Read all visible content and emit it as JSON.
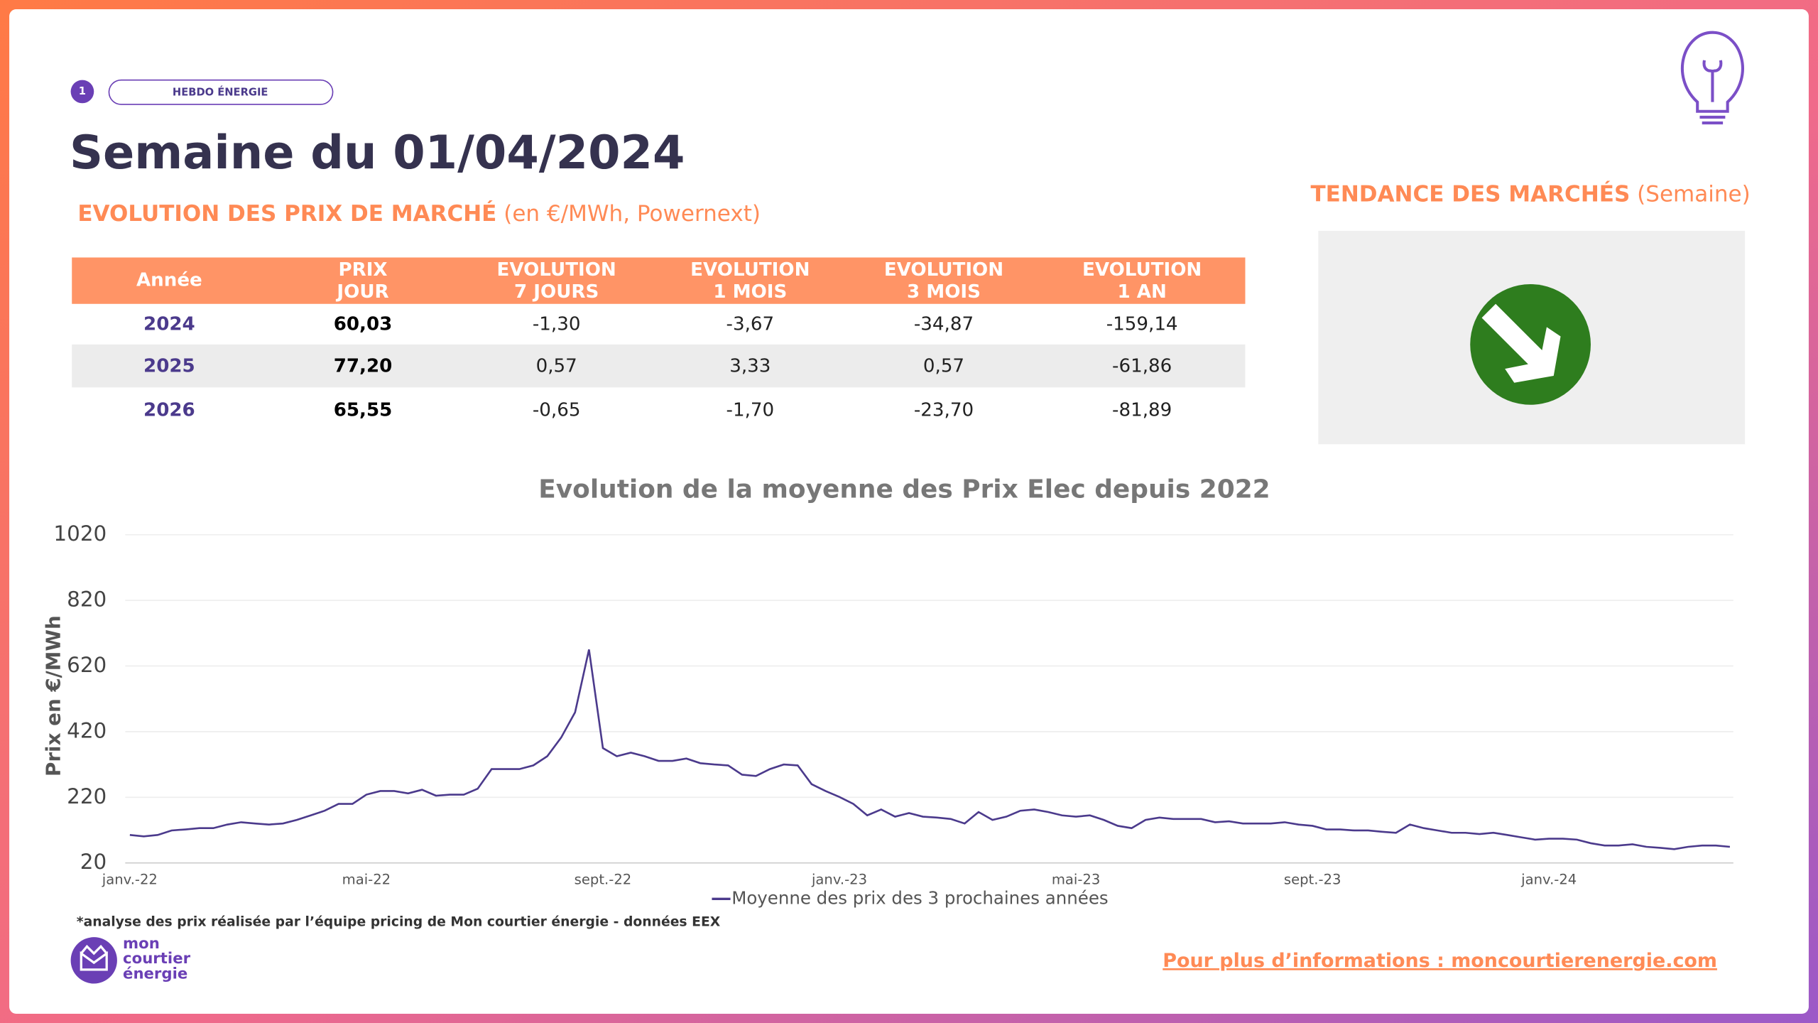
{
  "header": {
    "badge": "1",
    "tag": "HEBDO ÉNERGIE",
    "title": "Semaine du 01/04/2024",
    "subtitle": "EVOLUTION DES PRIX DE MARCHÉ",
    "subtitle_note": "(en €/MWh, Powernext)"
  },
  "trend": {
    "title": "TENDANCE DES MARCHÉS",
    "note": "(Semaine)"
  },
  "table": {
    "header": [
      [
        "Année"
      ],
      [
        "PRIX",
        "JOUR"
      ],
      [
        "EVOLUTION",
        "7 JOURS"
      ],
      [
        "EVOLUTION",
        "1 MOIS"
      ],
      [
        "EVOLUTION",
        "3 MOIS"
      ],
      [
        "EVOLUTION",
        "1 AN"
      ]
    ],
    "rows": [
      [
        "2024",
        "60,03",
        "-1,30",
        "-3,67",
        "-34,87",
        "-159,14"
      ],
      [
        "2025",
        "77,20",
        "0,57",
        "3,33",
        "0,57",
        "-61,86"
      ],
      [
        "2026",
        "65,55",
        "-0,65",
        "-1,70",
        "-23,70",
        "-81,89"
      ]
    ]
  },
  "chart_data": {
    "type": "line",
    "title": "Evolution de la moyenne des Prix Elec depuis 2022",
    "y_label": "Prix en €/MWh",
    "ylim": [
      20,
      1020
    ],
    "yticks": [
      20,
      220,
      420,
      620,
      820,
      1020
    ],
    "grid": true,
    "categories": [
      "janv.-22",
      null,
      null,
      null,
      null,
      null,
      null,
      null,
      null,
      null,
      null,
      null,
      null,
      null,
      null,
      null,
      null,
      "mai-22",
      null,
      null,
      null,
      null,
      null,
      null,
      null,
      null,
      null,
      null,
      null,
      null,
      null,
      null,
      null,
      null,
      "sept.-22",
      null,
      null,
      null,
      null,
      null,
      null,
      null,
      null,
      null,
      null,
      null,
      null,
      null,
      null,
      null,
      null,
      "janv.-23",
      null,
      null,
      null,
      null,
      null,
      null,
      null,
      null,
      null,
      null,
      null,
      null,
      null,
      null,
      null,
      null,
      "mai-23",
      null,
      null,
      null,
      null,
      null,
      null,
      null,
      null,
      null,
      null,
      null,
      null,
      null,
      null,
      null,
      null,
      "sept.-23",
      null,
      null,
      null,
      null,
      null,
      null,
      null,
      null,
      null,
      null,
      null,
      null,
      null,
      null,
      null,
      null,
      "janv.-24",
      null,
      null,
      null,
      null,
      null,
      null,
      null,
      null,
      null,
      null,
      null,
      null,
      null
    ],
    "series": [
      {
        "name": "Moyenne des prix des 3 prochaines années",
        "color": "#4b3a8c",
        "values": [
          105,
          101,
          105,
          119,
          122,
          126,
          126,
          137,
          144,
          140,
          137,
          140,
          151,
          165,
          179,
          200,
          200,
          228,
          239,
          239,
          232,
          243,
          225,
          228,
          228,
          246,
          306,
          306,
          306,
          317,
          345,
          402,
          479,
          670,
          370,
          345,
          356,
          345,
          331,
          331,
          338,
          324,
          320,
          317,
          289,
          285,
          306,
          320,
          317,
          260,
          239,
          221,
          200,
          165,
          183,
          161,
          172,
          161,
          158,
          154,
          140,
          175,
          151,
          161,
          179,
          183,
          175,
          165,
          161,
          165,
          151,
          133,
          126,
          151,
          158,
          154,
          154,
          154,
          144,
          147,
          140,
          140,
          140,
          144,
          137,
          133,
          122,
          122,
          119,
          119,
          115,
          112,
          137,
          126,
          119,
          112,
          112,
          108,
          112,
          105,
          98,
          91,
          94,
          94,
          91,
          80,
          73,
          73,
          77,
          69,
          66,
          62,
          69,
          73,
          73,
          69
        ]
      }
    ]
  },
  "footnote": "*analyse des prix réalisée par l’équipe pricing de Mon courtier énergie -  données EEX",
  "logo": [
    "mon",
    "courtier",
    "énergie"
  ],
  "footer": {
    "link": "Pour plus d’informations : moncourtierenergie.com"
  }
}
